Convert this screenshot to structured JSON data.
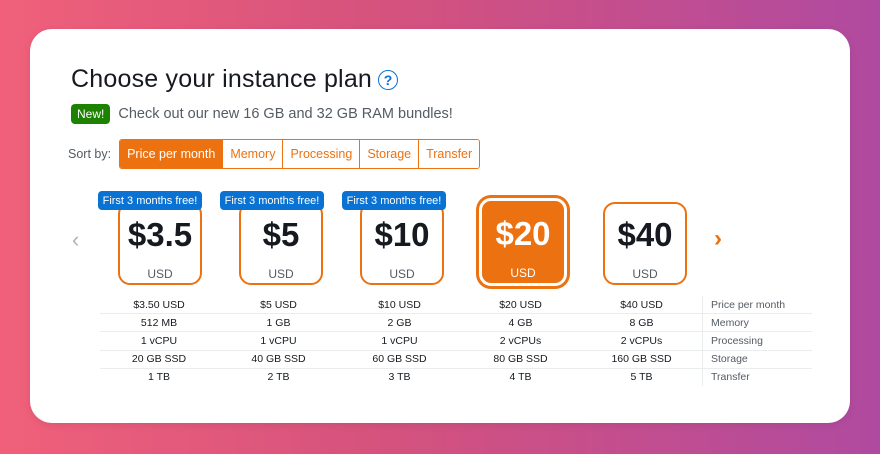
{
  "header": {
    "title": "Choose your instance plan",
    "help_icon": "?",
    "new_badge": "New!",
    "new_text": "Check out our new 16 GB and 32 GB RAM bundles!"
  },
  "sort": {
    "label": "Sort by:",
    "options": [
      "Price per month",
      "Memory",
      "Processing",
      "Storage",
      "Transfer"
    ],
    "active": "Price per month"
  },
  "carousel": {
    "prev_icon": "‹",
    "next_icon": "›"
  },
  "plans": [
    {
      "price": "$3.5",
      "currency": "USD",
      "promo": "First 3 months free!"
    },
    {
      "price": "$5",
      "currency": "USD",
      "promo": "First 3 months free!"
    },
    {
      "price": "$10",
      "currency": "USD",
      "promo": "First 3 months free!"
    },
    {
      "price": "$20",
      "currency": "USD",
      "selected": true
    },
    {
      "price": "$40",
      "currency": "USD"
    }
  ],
  "specs": {
    "rows": [
      {
        "label": "Price per month",
        "values": [
          "$3.50 USD",
          "$5 USD",
          "$10 USD",
          "$20 USD",
          "$40 USD"
        ]
      },
      {
        "label": "Memory",
        "values": [
          "512 MB",
          "1 GB",
          "2 GB",
          "4 GB",
          "8 GB"
        ]
      },
      {
        "label": "Processing",
        "values": [
          "1 vCPU",
          "1 vCPU",
          "1 vCPU",
          "2 vCPUs",
          "2 vCPUs"
        ]
      },
      {
        "label": "Storage",
        "values": [
          "20 GB SSD",
          "40 GB SSD",
          "60 GB SSD",
          "80 GB SSD",
          "160 GB SSD"
        ]
      },
      {
        "label": "Transfer",
        "values": [
          "1 TB",
          "2 TB",
          "3 TB",
          "4 TB",
          "5 TB"
        ]
      }
    ]
  },
  "colors": {
    "accent": "#ec7211",
    "promo": "#0972d3",
    "new_badge": "#1d8102"
  }
}
